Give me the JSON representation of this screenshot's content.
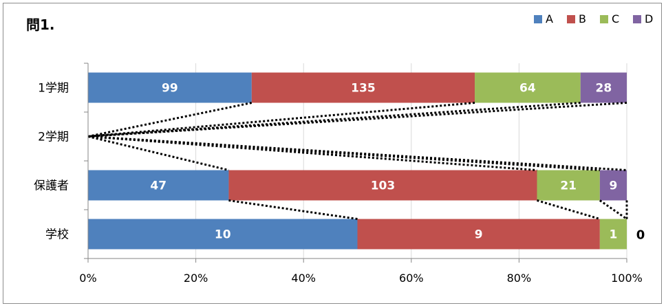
{
  "chart_data": {
    "type": "bar",
    "orientation": "horizontal",
    "stacked": "percent",
    "title": "問1.",
    "categories": [
      "1学期",
      "2学期",
      "保護者",
      "学校"
    ],
    "series": [
      {
        "name": "A",
        "color": "#4F81BD",
        "values": [
          99,
          0,
          47,
          10
        ]
      },
      {
        "name": "B",
        "color": "#C0504D",
        "values": [
          135,
          0,
          103,
          9
        ]
      },
      {
        "name": "C",
        "color": "#9BBB59",
        "values": [
          64,
          0,
          21,
          1
        ]
      },
      {
        "name": "D",
        "color": "#8064A2",
        "values": [
          28,
          0,
          9,
          0
        ]
      }
    ],
    "x_ticks": [
      "0%",
      "20%",
      "40%",
      "60%",
      "80%",
      "100%"
    ],
    "xlim": [
      0,
      100
    ],
    "legend_position": "top-right",
    "grid": true,
    "series_lines": "dotted",
    "outside_labels": [
      {
        "category": "学校",
        "series": "D",
        "text": "0"
      }
    ]
  }
}
